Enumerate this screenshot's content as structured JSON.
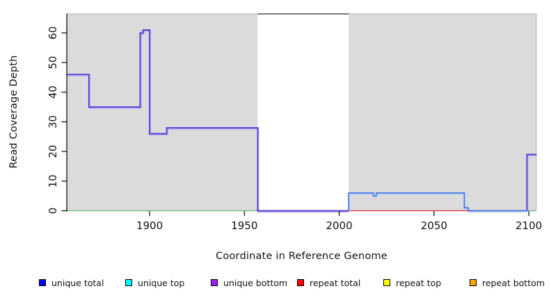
{
  "chart_data": {
    "type": "line",
    "subtype": "step-coverage-plot",
    "title": "",
    "xlabel": "Coordinate in Reference Genome",
    "ylabel": "Read Coverage Depth",
    "xlim": [
      1856.5,
      2104
    ],
    "ylim": [
      0,
      66.3
    ],
    "xticks": [
      1900,
      1950,
      2000,
      2050,
      2100
    ],
    "yticks": [
      0,
      10,
      20,
      30,
      40,
      50,
      60
    ],
    "grid": false,
    "plot_bg": "#ffffff",
    "shaded_region_color": "#dbdbdb",
    "box_line_color": "#4f4f4f",
    "edge_line_color": "#b6b6b6",
    "background_regions": [
      {
        "name": "shaded-left",
        "x0": 1856.5,
        "x1": 1957,
        "shaded": true
      },
      {
        "name": "white-gap",
        "x0": 1957,
        "x1": 2005,
        "shaded": false
      },
      {
        "name": "shaded-right",
        "x0": 2005,
        "x1": 2104,
        "shaded": true
      }
    ],
    "series": [
      {
        "name": "repeat total",
        "color": "#d62f3f",
        "width": 1.3,
        "segments": [
          [
            [
              2005,
              0
            ],
            [
              2099,
              0
            ]
          ]
        ]
      },
      {
        "name": "unique total",
        "color": "#4379e4",
        "fringe": "#bcd2f4",
        "width": 1.7,
        "segments": [
          [
            [
              2005,
              0
            ],
            [
              2005,
              6
            ],
            [
              2018,
              6
            ],
            [
              2018,
              5
            ],
            [
              2019.5,
              5
            ],
            [
              2019.5,
              6
            ],
            [
              2066,
              6
            ],
            [
              2066,
              1
            ],
            [
              2068,
              1
            ],
            [
              2068,
              0
            ],
            [
              2099,
              0
            ]
          ]
        ]
      },
      {
        "name": "baseline (green)",
        "color": "#6abf6a",
        "width": 1.3,
        "segments": [
          [
            [
              1856.5,
              0
            ],
            [
              1957,
              0
            ]
          ],
          [
            [
              2099,
              0
            ],
            [
              2104,
              0
            ]
          ]
        ]
      },
      {
        "name": "unique bottom",
        "color": "#5334d6",
        "fringe": "#b2a4ee",
        "width": 1.7,
        "segments": [
          [
            [
              1856.5,
              46
            ],
            [
              1868,
              46
            ],
            [
              1868,
              35
            ],
            [
              1895,
              35
            ],
            [
              1895,
              60
            ],
            [
              1896.5,
              60
            ],
            [
              1896.5,
              61
            ],
            [
              1900,
              61
            ],
            [
              1900,
              26
            ],
            [
              1909,
              26
            ],
            [
              1909,
              28
            ],
            [
              1957,
              28
            ],
            [
              1957,
              0
            ],
            [
              2005,
              0
            ]
          ],
          [
            [
              2099,
              0
            ],
            [
              2099,
              19
            ],
            [
              2104,
              19
            ]
          ]
        ]
      }
    ],
    "legend": [
      {
        "label": "unique total",
        "color": "#0000ee"
      },
      {
        "label": "unique top",
        "color": "#00ffff"
      },
      {
        "label": "unique bottom",
        "color": "#a020f0"
      },
      {
        "label": "repeat total",
        "color": "#ff0000"
      },
      {
        "label": "repeat top",
        "color": "#ffff00"
      },
      {
        "label": "repeat bottom",
        "color": "#ffa500"
      }
    ]
  }
}
